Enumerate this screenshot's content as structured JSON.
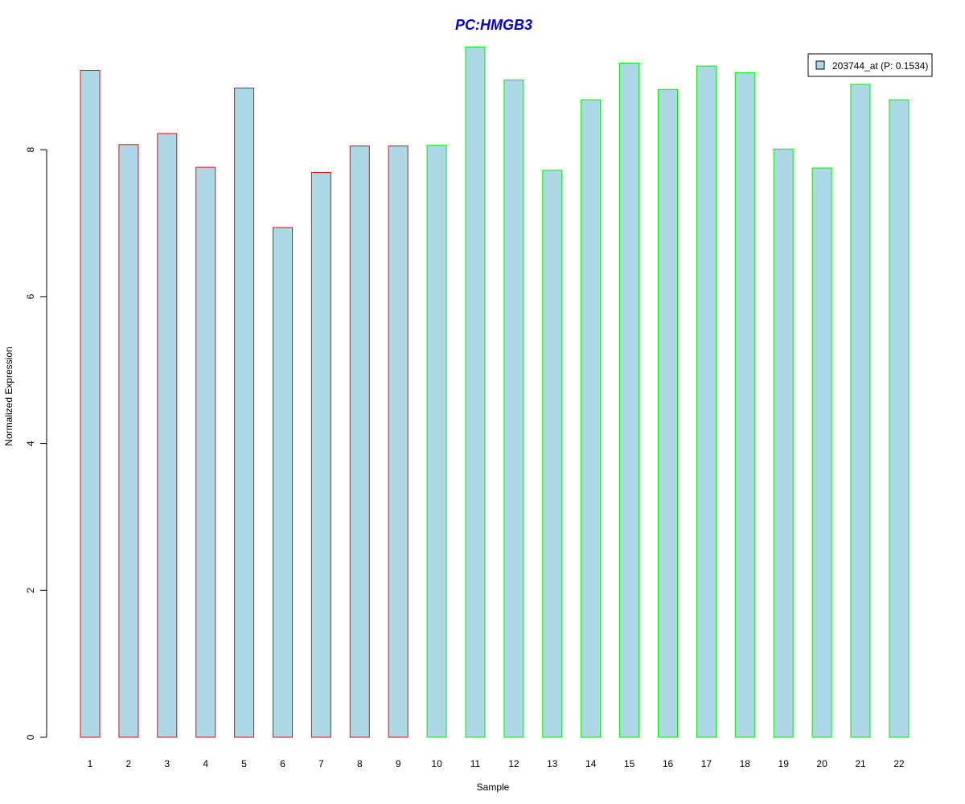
{
  "chart_data": {
    "type": "bar",
    "title": "PC:HMGB3",
    "xlabel": "Sample",
    "ylabel": "Normalized Expression",
    "ylim": [
      0,
      9.4
    ],
    "yticks": [
      0,
      2,
      4,
      6,
      8
    ],
    "grid": false,
    "legend_placement": "top-right",
    "categories": [
      "1",
      "2",
      "3",
      "4",
      "5",
      "6",
      "7",
      "8",
      "9",
      "10",
      "11",
      "12",
      "13",
      "14",
      "15",
      "16",
      "17",
      "18",
      "19",
      "20",
      "21",
      "22"
    ],
    "series": [
      {
        "name": "203744_at (P: 0.1534)",
        "values": [
          9.08,
          8.07,
          8.22,
          7.76,
          8.84,
          6.94,
          7.69,
          8.05,
          8.05,
          8.06,
          9.4,
          8.95,
          7.72,
          8.68,
          9.18,
          8.82,
          9.14,
          9.05,
          8.01,
          7.75,
          8.89,
          8.68
        ],
        "fill": "#add8e6",
        "border_colors": [
          "#ff0000",
          "#ff0000",
          "#ff0000",
          "#ff0000",
          "#ff0000",
          "#ff0000",
          "#ff0000",
          "#ff0000",
          "#ff0000",
          "#00ee00",
          "#00ee00",
          "#00ee00",
          "#00ee00",
          "#00ee00",
          "#00ee00",
          "#00ee00",
          "#00ee00",
          "#00ee00",
          "#00ee00",
          "#00ee00",
          "#00ee00",
          "#00ee00"
        ]
      }
    ],
    "colors": {
      "title": "#0000cc",
      "axis": "#000000",
      "legend_border": "#000000"
    }
  }
}
